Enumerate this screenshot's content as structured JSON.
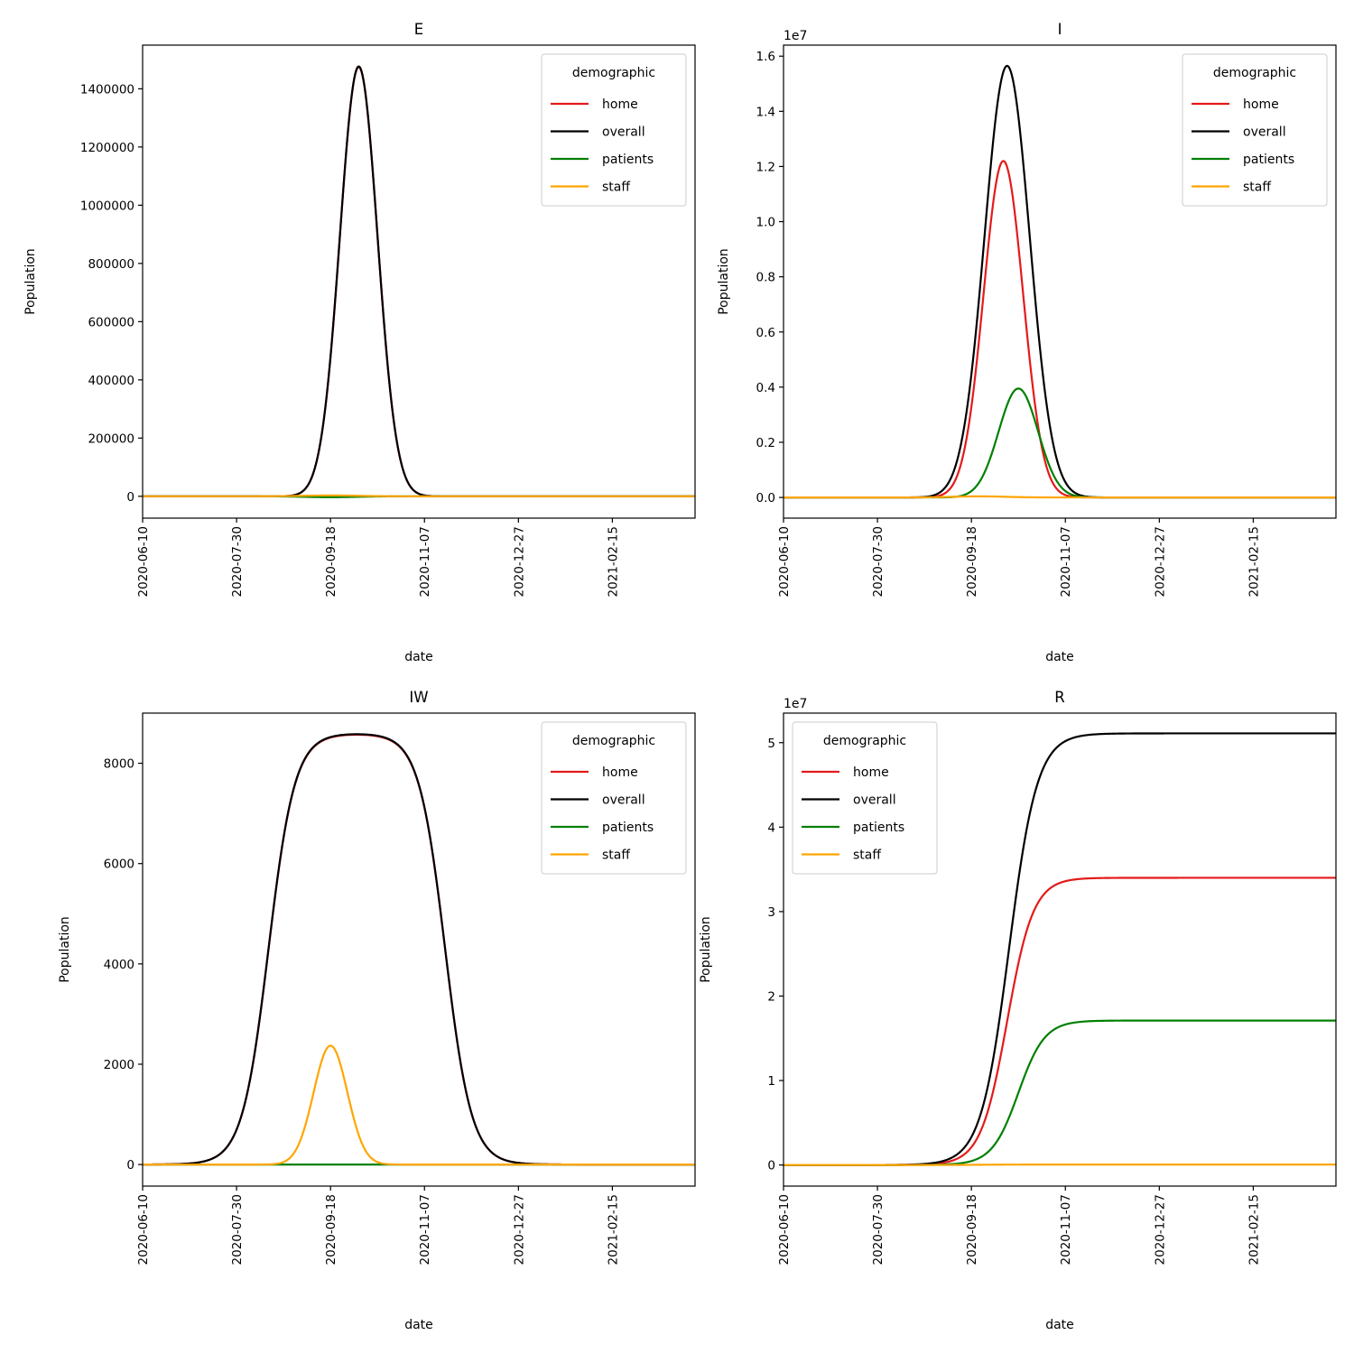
{
  "chart_data": [
    {
      "type": "line",
      "title": "E",
      "xlabel": "date",
      "ylabel": "Population",
      "x_ticks": [
        "2020-06-10",
        "2020-07-30",
        "2020-09-18",
        "2020-11-07",
        "2020-12-27",
        "2021-02-15"
      ],
      "xlim": [
        "2020-06-10",
        "2021-03-31"
      ],
      "ylim": [
        -75000,
        1550000
      ],
      "y_ticks": [
        "0",
        "200000",
        "400000",
        "600000",
        "800000",
        "1000000",
        "1200000",
        "1400000"
      ],
      "y_tick_values": [
        0,
        200000,
        400000,
        600000,
        800000,
        1000000,
        1200000,
        1400000
      ],
      "legend": {
        "title": "demographic",
        "position": "upper right"
      },
      "series": [
        {
          "name": "home",
          "color": "#e41a1a",
          "curve": {
            "kind": "gaussian",
            "peak": 1475000,
            "center": "2020-10-03",
            "sigma": 10
          }
        },
        {
          "name": "overall",
          "color": "#000000",
          "curve": {
            "kind": "gaussian",
            "peak": 1477000,
            "center": "2020-10-03",
            "sigma": 10
          }
        },
        {
          "name": "patients",
          "color": "#008000",
          "curve": {
            "kind": "gaussian",
            "peak": -3000,
            "center": "2020-09-18",
            "sigma": 14
          }
        },
        {
          "name": "staff",
          "color": "#ffa500",
          "curve": {
            "kind": "gaussian",
            "peak": 3000,
            "center": "2020-09-18",
            "sigma": 14
          }
        }
      ]
    },
    {
      "type": "line",
      "title": "I",
      "xlabel": "date",
      "ylabel": "Population",
      "offset_label": "1e7",
      "x_ticks": [
        "2020-06-10",
        "2020-07-30",
        "2020-09-18",
        "2020-11-07",
        "2020-12-27",
        "2021-02-15"
      ],
      "xlim": [
        "2020-06-10",
        "2021-03-31"
      ],
      "ylim": [
        -0.075,
        1.64
      ],
      "y_ticks": [
        "0.0",
        "0.2",
        "0.4",
        "0.6",
        "0.8",
        "1.0",
        "1.2",
        "1.4",
        "1.6"
      ],
      "y_tick_values": [
        0,
        0.2,
        0.4,
        0.6,
        0.8,
        1.0,
        1.2,
        1.4,
        1.6
      ],
      "legend": {
        "title": "demographic",
        "position": "upper right"
      },
      "series": [
        {
          "name": "home",
          "color": "#e41a1a",
          "curve": {
            "kind": "gaussian",
            "peak": 1.22,
            "center": "2020-10-05",
            "sigma": 10.5
          }
        },
        {
          "name": "overall",
          "color": "#000000",
          "curve": {
            "kind": "gaussian",
            "peak": 1.565,
            "center": "2020-10-07",
            "sigma": 12
          }
        },
        {
          "name": "patients",
          "color": "#008000",
          "curve": {
            "kind": "gaussian",
            "peak": 0.395,
            "center": "2020-10-13",
            "sigma": 10.5
          }
        },
        {
          "name": "staff",
          "color": "#ffa500",
          "curve": {
            "kind": "gaussian",
            "peak": 0.004,
            "center": "2020-09-22",
            "sigma": 14
          }
        }
      ]
    },
    {
      "type": "line",
      "title": "IW",
      "xlabel": "date",
      "ylabel": "Population",
      "x_ticks": [
        "2020-06-10",
        "2020-07-30",
        "2020-09-18",
        "2020-11-07",
        "2020-12-27",
        "2021-02-15"
      ],
      "xlim": [
        "2020-06-10",
        "2021-03-31"
      ],
      "ylim": [
        -430,
        9000
      ],
      "y_ticks": [
        "0",
        "2000",
        "4000",
        "6000",
        "8000"
      ],
      "y_tick_values": [
        0,
        2000,
        4000,
        6000,
        8000
      ],
      "legend": {
        "title": "demographic",
        "position": "upper right"
      },
      "series": [
        {
          "name": "home",
          "color": "#e41a1a",
          "curve": {
            "kind": "plateau",
            "peak": 8590,
            "rise_mid": "2020-08-16",
            "fall_mid": "2020-11-18",
            "width": 7
          }
        },
        {
          "name": "overall",
          "color": "#000000",
          "curve": {
            "kind": "plateau",
            "peak": 8600,
            "rise_mid": "2020-08-16",
            "fall_mid": "2020-11-18",
            "width": 7
          }
        },
        {
          "name": "patients",
          "color": "#008000",
          "curve": {
            "kind": "gaussian",
            "peak": 0,
            "center": "2020-09-18",
            "sigma": 14
          }
        },
        {
          "name": "staff",
          "color": "#ffa500",
          "curve": {
            "kind": "gaussian",
            "peak": 2370,
            "center": "2020-09-18",
            "sigma": 9
          }
        }
      ]
    },
    {
      "type": "line",
      "title": "R",
      "xlabel": "date",
      "ylabel": "Population",
      "offset_label": "1e7",
      "x_ticks": [
        "2020-06-10",
        "2020-07-30",
        "2020-09-18",
        "2020-11-07",
        "2020-12-27",
        "2021-02-15"
      ],
      "xlim": [
        "2020-06-10",
        "2021-03-31"
      ],
      "ylim": [
        -0.25,
        5.35
      ],
      "y_ticks": [
        "0",
        "1",
        "2",
        "3",
        "4",
        "5"
      ],
      "y_tick_values": [
        0,
        1,
        2,
        3,
        4,
        5
      ],
      "legend": {
        "title": "demographic",
        "position": "upper left"
      },
      "series": [
        {
          "name": "home",
          "color": "#e41a1a",
          "curve": {
            "kind": "sigmoid",
            "final": 3.4,
            "mid": "2020-10-07",
            "scale": 7
          }
        },
        {
          "name": "overall",
          "color": "#000000",
          "curve": {
            "kind": "sigmoid",
            "final": 5.11,
            "mid": "2020-10-08",
            "scale": 7.5
          }
        },
        {
          "name": "patients",
          "color": "#008000",
          "curve": {
            "kind": "sigmoid",
            "final": 1.71,
            "mid": "2020-10-13",
            "scale": 7
          }
        },
        {
          "name": "staff",
          "color": "#ffa500",
          "curve": {
            "kind": "sigmoid",
            "final": 0.005,
            "mid": "2020-09-22",
            "scale": 8
          }
        }
      ]
    }
  ]
}
